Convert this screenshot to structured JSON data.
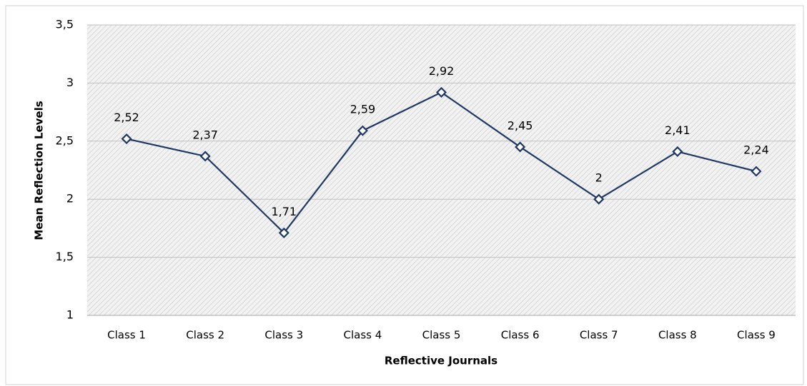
{
  "chart_data": {
    "type": "line",
    "x_label": "Reflective Journals",
    "y_label": "Mean Reflection Levels",
    "categories": [
      "Class 1",
      "Class 2",
      "Class 3",
      "Class 4",
      "Class 5",
      "Class 6",
      "Class 7",
      "Class 8",
      "Class 9"
    ],
    "series": [
      {
        "name": "Mean Reflection Levels",
        "color": "#1f3864",
        "values": [
          2.52,
          2.37,
          1.71,
          2.59,
          2.92,
          2.45,
          2,
          2.41,
          2.24
        ],
        "value_labels": [
          "2,52",
          "2,37",
          "1,71",
          "2,59",
          "2,92",
          "2,45",
          "2",
          "2,41",
          "2,24"
        ]
      }
    ],
    "ylim": [
      1,
      3.5
    ],
    "yticks": [
      1,
      {
        "value": 1.5,
        "label": "1,5"
      },
      2,
      {
        "value": 2.5,
        "label": "2,5"
      },
      3,
      {
        "value": 3.5,
        "label": "3,5"
      }
    ],
    "grid": true
  }
}
